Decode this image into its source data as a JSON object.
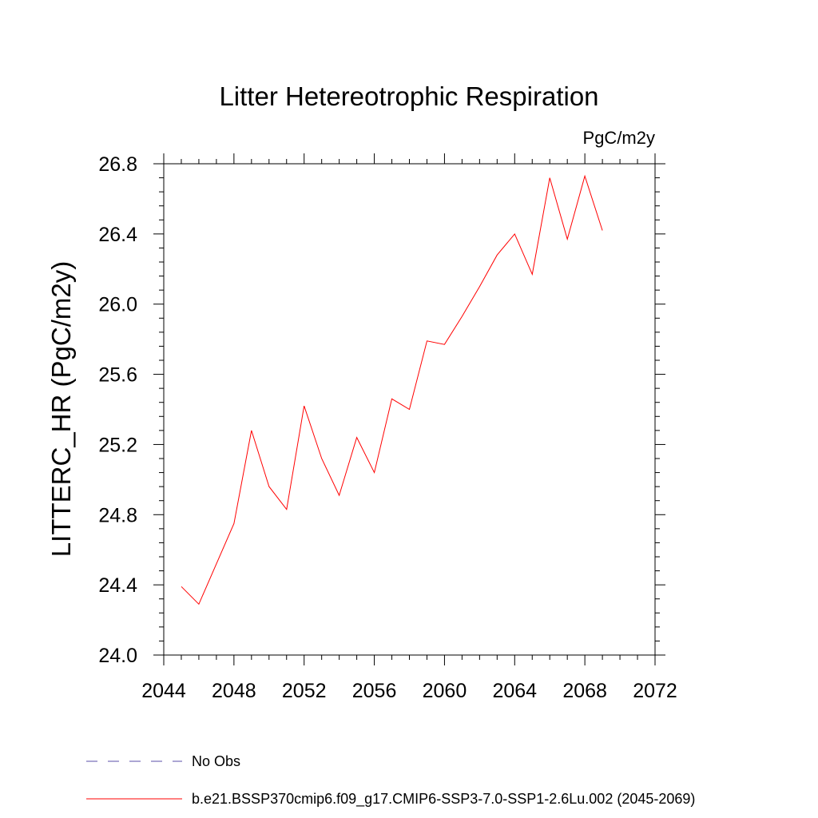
{
  "chart_data": {
    "type": "line",
    "title": "Litter Hetereotrophic Respiration",
    "units_label": "PgC/m2y",
    "xlabel": "",
    "ylabel": "LITTERC_HR  (PgC/m2y)",
    "xlim": [
      2044,
      2072
    ],
    "ylim": [
      24.0,
      26.8
    ],
    "x_major_ticks": [
      2044,
      2048,
      2052,
      2056,
      2060,
      2064,
      2068,
      2072
    ],
    "x_tick_labels": [
      "2044",
      "2048",
      "2052",
      "2056",
      "2060",
      "2064",
      "2068",
      "2072"
    ],
    "y_major_ticks": [
      24.0,
      24.4,
      24.8,
      25.2,
      25.6,
      26.0,
      26.4,
      26.8
    ],
    "y_tick_labels": [
      "24.0",
      "24.4",
      "24.8",
      "25.2",
      "25.6",
      "26.0",
      "26.4",
      "26.8"
    ],
    "grid": false,
    "legend_placement": "bottom",
    "series": [
      {
        "name": "b.e21.BSSP370cmip6.f09_g17.CMIP6-SSP3-7.0-SSP1-2.6Lu.002 (2045-2069)",
        "color": "#ff0000",
        "style": "solid",
        "x": [
          2045,
          2046,
          2047,
          2048,
          2049,
          2050,
          2051,
          2052,
          2053,
          2054,
          2055,
          2056,
          2057,
          2058,
          2059,
          2060,
          2061,
          2062,
          2063,
          2064,
          2065,
          2066,
          2067,
          2068,
          2069
        ],
        "y": [
          24.39,
          24.29,
          24.52,
          24.75,
          25.28,
          24.96,
          24.83,
          25.42,
          25.12,
          24.91,
          25.24,
          25.04,
          25.46,
          25.4,
          25.79,
          25.77,
          25.93,
          26.1,
          26.28,
          26.4,
          26.17,
          26.72,
          26.37,
          26.73,
          26.42
        ]
      }
    ],
    "legend": [
      {
        "label": "No Obs",
        "color": "#5a4fa8",
        "style": "dashed"
      },
      {
        "label": "b.e21.BSSP370cmip6.f09_g17.CMIP6-SSP3-7.0-SSP1-2.6Lu.002 (2045-2069)",
        "color": "#ff0000",
        "style": "solid"
      }
    ]
  }
}
